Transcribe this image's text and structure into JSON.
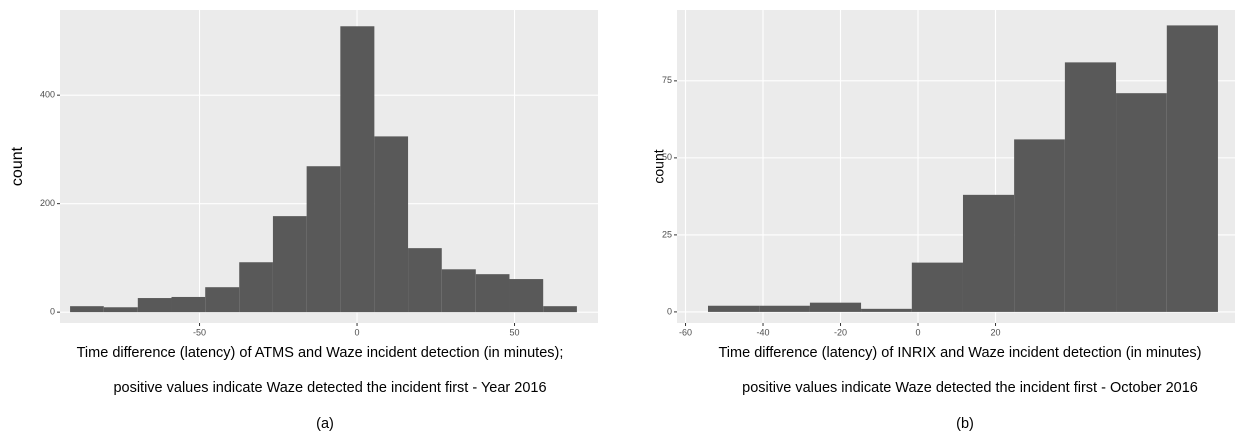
{
  "chart_data": [
    {
      "type": "histogram",
      "ylabel": "count",
      "xlabel": "Time difference (latency) of ATMS and Waze incident detection (in minutes);",
      "note": "positive values indicate Waze detected the incident first - Year 2016",
      "panel_label": "(a)",
      "bins": [
        -91.1,
        -80.4,
        -69.6,
        -58.9,
        -48.2,
        -37.4,
        -26.7,
        -16.0,
        -5.3,
        5.5,
        16.2,
        26.9,
        37.7,
        48.4,
        59.1,
        69.8
      ],
      "values": [
        11,
        9,
        26,
        28,
        46,
        92,
        177,
        269,
        527,
        324,
        118,
        79,
        70,
        61,
        11
      ],
      "color": "#595959",
      "xlim": [
        -94.3,
        76.5
      ],
      "ylim": [
        -20,
        557
      ],
      "xticks": [
        -50,
        0,
        50
      ],
      "yticks": [
        0,
        200,
        400
      ],
      "grid": true
    },
    {
      "type": "histogram",
      "ylabel": "count",
      "xlabel": "Time difference (latency) of INRIX and Waze incident detection (in minutes)",
      "note": "positive values indicate Waze detected the incident first - October 2016",
      "panel_label": "(b)",
      "bins": [
        -54.2,
        -41.0,
        -27.9,
        -14.7,
        -1.6,
        11.6,
        24.8,
        37.9,
        51.1,
        64.2,
        77.4
      ],
      "values": [
        2,
        2,
        3,
        1,
        16,
        38,
        56,
        81,
        71,
        93
      ],
      "color": "#595959",
      "xlim": [
        -62.2,
        81.8
      ],
      "ylim": [
        -3.6,
        98
      ],
      "xticks": [
        -60,
        -40,
        -20,
        0,
        20
      ],
      "yticks": [
        0,
        25,
        50,
        75
      ],
      "grid": true
    }
  ]
}
